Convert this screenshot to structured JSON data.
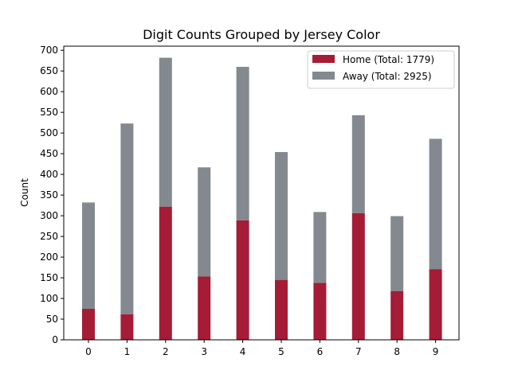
{
  "chart_data": {
    "type": "bar",
    "stacked": true,
    "title": "Digit Counts Grouped by Jersey Color",
    "xlabel": "",
    "ylabel": "Count",
    "categories": [
      "0",
      "1",
      "2",
      "3",
      "4",
      "5",
      "6",
      "7",
      "8",
      "9"
    ],
    "ylim": [
      0,
      710
    ],
    "yticks": [
      0,
      50,
      100,
      150,
      200,
      250,
      300,
      350,
      400,
      450,
      500,
      550,
      600,
      650,
      700
    ],
    "grid": false,
    "legend_position": "top-right",
    "series": [
      {
        "name": "Home (Total: 1779)",
        "color": "#a51c36",
        "values": [
          75,
          62,
          322,
          153,
          289,
          145,
          138,
          306,
          118,
          171
        ]
      },
      {
        "name": "Away (Total: 2925)",
        "color": "#83898e",
        "values": [
          257,
          461,
          360,
          264,
          371,
          309,
          171,
          237,
          181,
          315
        ]
      }
    ]
  }
}
